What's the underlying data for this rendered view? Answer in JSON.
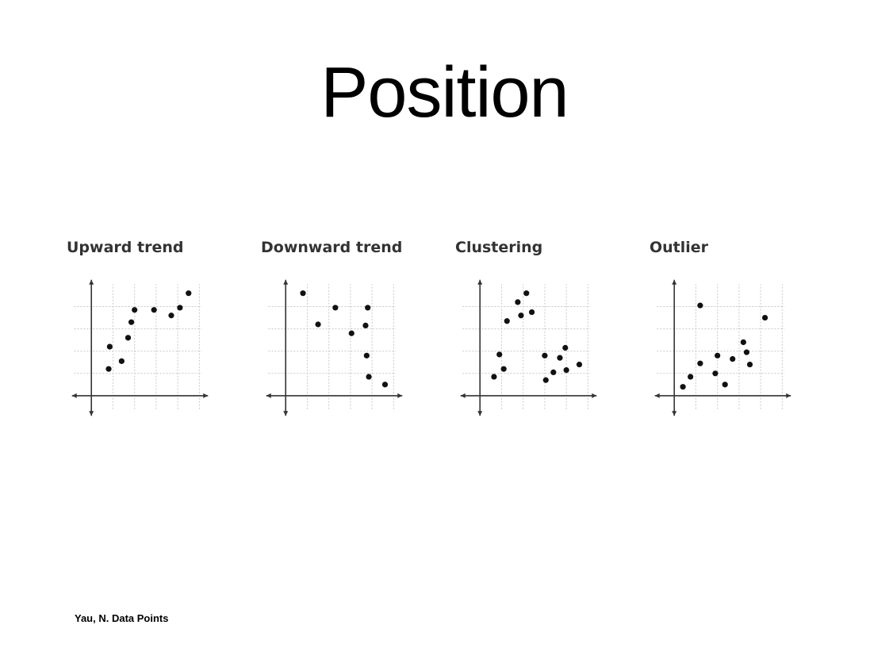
{
  "slide": {
    "title": "Position",
    "caption": "Yau, N. Data Points"
  },
  "colors": {
    "axis": "#333333",
    "grid": "#c8c8c8",
    "point": "#111111"
  },
  "chart_data": [
    {
      "type": "scatter",
      "title": "Upward trend",
      "xlim": [
        -1,
        5.5
      ],
      "ylim": [
        -1,
        5.3
      ],
      "grid": true,
      "points": [
        [
          0.8,
          1.2
        ],
        [
          0.85,
          2.2
        ],
        [
          1.4,
          1.55
        ],
        [
          1.7,
          2.6
        ],
        [
          1.85,
          3.3
        ],
        [
          2.0,
          3.85
        ],
        [
          2.9,
          3.85
        ],
        [
          3.7,
          3.6
        ],
        [
          4.1,
          3.95
        ],
        [
          4.5,
          4.6
        ]
      ]
    },
    {
      "type": "scatter",
      "title": "Downward trend",
      "xlim": [
        -1,
        5.5
      ],
      "ylim": [
        -1,
        5.3
      ],
      "grid": true,
      "points": [
        [
          0.8,
          4.6
        ],
        [
          1.5,
          3.2
        ],
        [
          2.3,
          3.95
        ],
        [
          3.05,
          2.8
        ],
        [
          3.7,
          3.15
        ],
        [
          3.8,
          3.95
        ],
        [
          3.75,
          1.8
        ],
        [
          3.85,
          0.85
        ],
        [
          4.6,
          0.5
        ]
      ]
    },
    {
      "type": "scatter",
      "title": "Clustering",
      "xlim": [
        -1,
        5.5
      ],
      "ylim": [
        -1,
        5.3
      ],
      "grid": true,
      "points": [
        [
          0.65,
          0.85
        ],
        [
          0.9,
          1.85
        ],
        [
          1.1,
          1.2
        ],
        [
          1.25,
          3.35
        ],
        [
          1.75,
          4.2
        ],
        [
          1.9,
          3.6
        ],
        [
          2.15,
          4.6
        ],
        [
          2.4,
          3.75
        ],
        [
          3.0,
          1.8
        ],
        [
          3.05,
          0.7
        ],
        [
          3.4,
          1.05
        ],
        [
          3.7,
          1.7
        ],
        [
          3.95,
          2.15
        ],
        [
          4.0,
          1.15
        ],
        [
          4.6,
          1.4
        ]
      ]
    },
    {
      "type": "scatter",
      "title": "Outlier",
      "xlim": [
        -1,
        5.5
      ],
      "ylim": [
        -1,
        5.3
      ],
      "grid": true,
      "points": [
        [
          0.4,
          0.4
        ],
        [
          0.75,
          0.85
        ],
        [
          1.2,
          1.45
        ],
        [
          1.2,
          4.05
        ],
        [
          1.9,
          1.0
        ],
        [
          2.0,
          1.8
        ],
        [
          2.35,
          0.5
        ],
        [
          2.7,
          1.65
        ],
        [
          3.2,
          2.4
        ],
        [
          3.35,
          1.95
        ],
        [
          3.5,
          1.4
        ],
        [
          4.2,
          3.5
        ]
      ]
    }
  ]
}
